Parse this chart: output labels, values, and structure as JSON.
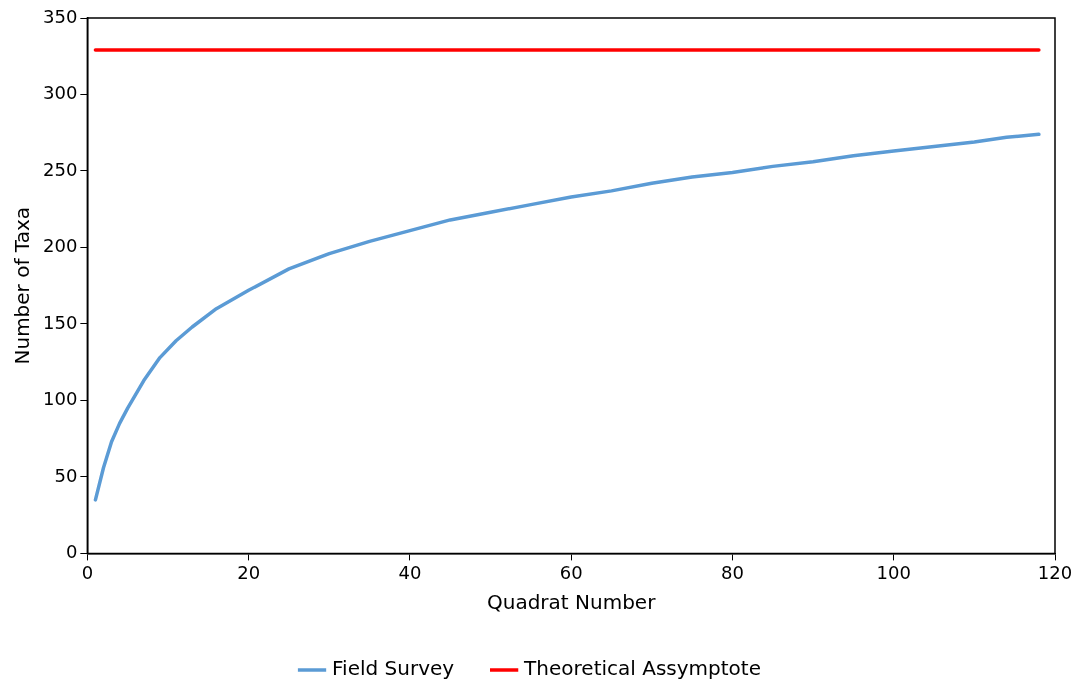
{
  "chart_data": {
    "type": "line",
    "xlabel": "Quadrat Number",
    "ylabel": "Number of Taxa",
    "xlim": [
      0,
      120
    ],
    "xticks": [
      0,
      20,
      40,
      60,
      80,
      100,
      120
    ],
    "ylim": [
      0,
      350
    ],
    "yticks": [
      0,
      50,
      100,
      150,
      200,
      250,
      300,
      350
    ],
    "grid": false,
    "legend": "bottom",
    "marker": "none",
    "line_style": "solid",
    "series": [
      {
        "name": "Field Survey",
        "color": "#5b9bd5",
        "x": [
          1,
          2,
          3,
          4,
          5,
          7,
          9,
          11,
          13,
          16,
          20,
          25,
          30,
          35,
          40,
          45,
          50,
          55,
          60,
          65,
          70,
          75,
          80,
          85,
          90,
          95,
          100,
          105,
          110,
          114,
          118
        ],
        "values": [
          35,
          56,
          73,
          85,
          95,
          113,
          128,
          139,
          148,
          160,
          172,
          186,
          196,
          204,
          211,
          218,
          223,
          228,
          233,
          237,
          242,
          246,
          249,
          253,
          256,
          260,
          263,
          266,
          269,
          272,
          274
        ]
      },
      {
        "name": "Theoretical Assymptote",
        "color": "#ff0000",
        "x": [
          1,
          118
        ],
        "values": [
          329,
          329
        ]
      }
    ]
  }
}
